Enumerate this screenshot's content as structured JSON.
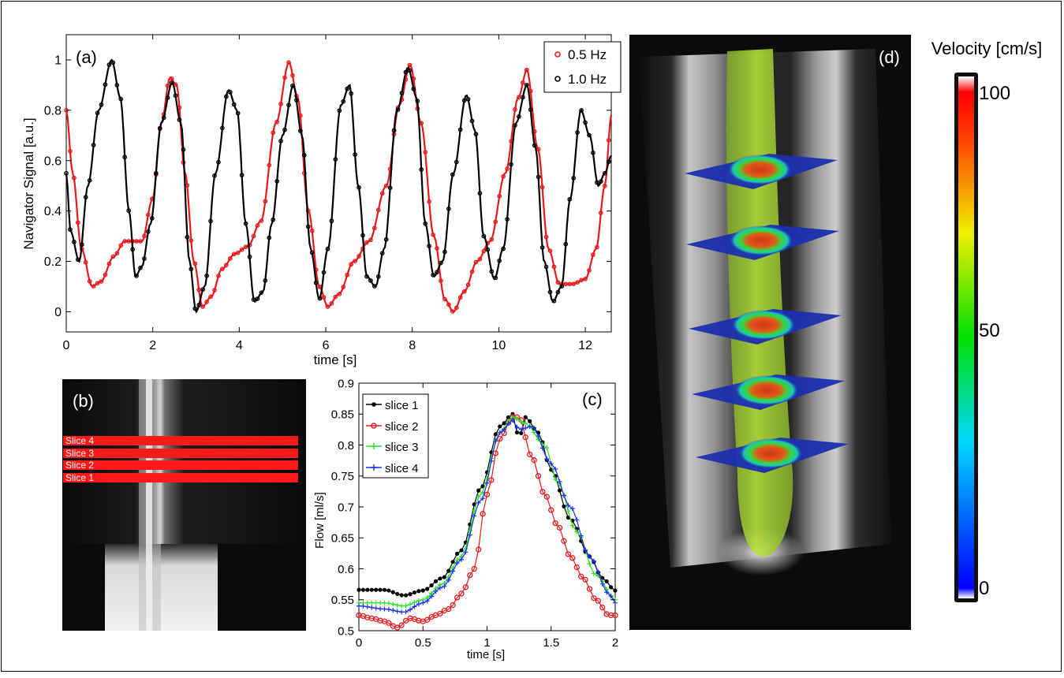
{
  "colors": {
    "red": "#e8191b",
    "black": "#000000",
    "green": "#27e627",
    "blue": "#1d2ff0",
    "slice_band": "#ff1a1a"
  },
  "chart_data": [
    {
      "id": "a",
      "type": "line",
      "panel_label": "(a)",
      "xlabel": "time [s]",
      "ylabel": "Navigator Signal [a.u.]",
      "xlim": [
        0,
        12.6
      ],
      "ylim": [
        -0.08,
        1.1
      ],
      "xticks": [
        0,
        2,
        4,
        6,
        8,
        10,
        12
      ],
      "xtick_labels": [
        "0",
        "2",
        "4",
        "6",
        "8",
        "10",
        "12"
      ],
      "yticks": [
        0,
        0.2,
        0.4,
        0.6,
        0.8,
        1
      ],
      "ytick_labels": [
        "0",
        "0.2",
        "0.4",
        "0.6",
        "0.8",
        "1"
      ],
      "legend": {
        "position": "top-right",
        "entries": [
          "0.5 Hz",
          "1.0 Hz"
        ]
      },
      "series": [
        {
          "name": "0.5 Hz",
          "color": "#e8191b",
          "points": [
            [
              0,
              0.8
            ],
            [
              0.15,
              0.55
            ],
            [
              0.35,
              0.25
            ],
            [
              0.6,
              0.1
            ],
            [
              0.8,
              0.12
            ],
            [
              1.1,
              0.22
            ],
            [
              1.35,
              0.28
            ],
            [
              1.75,
              0.28
            ],
            [
              2.0,
              0.45
            ],
            [
              2.2,
              0.75
            ],
            [
              2.4,
              0.93
            ],
            [
              2.55,
              0.9
            ],
            [
              2.75,
              0.55
            ],
            [
              2.95,
              0.2
            ],
            [
              3.15,
              0.02
            ],
            [
              3.35,
              0.06
            ],
            [
              3.6,
              0.17
            ],
            [
              3.9,
              0.23
            ],
            [
              4.2,
              0.26
            ],
            [
              4.5,
              0.36
            ],
            [
              4.85,
              0.75
            ],
            [
              5.15,
              0.99
            ],
            [
              5.35,
              0.85
            ],
            [
              5.6,
              0.4
            ],
            [
              5.85,
              0.1
            ],
            [
              6.05,
              0.02
            ],
            [
              6.3,
              0.07
            ],
            [
              6.65,
              0.2
            ],
            [
              7.0,
              0.28
            ],
            [
              7.4,
              0.5
            ],
            [
              7.7,
              0.82
            ],
            [
              7.95,
              0.98
            ],
            [
              8.2,
              0.75
            ],
            [
              8.5,
              0.3
            ],
            [
              8.75,
              0.05
            ],
            [
              8.95,
              0.0
            ],
            [
              9.2,
              0.08
            ],
            [
              9.5,
              0.2
            ],
            [
              9.8,
              0.28
            ],
            [
              10.15,
              0.55
            ],
            [
              10.45,
              0.85
            ],
            [
              10.65,
              0.96
            ],
            [
              10.9,
              0.65
            ],
            [
              11.15,
              0.25
            ],
            [
              11.4,
              0.11
            ],
            [
              11.7,
              0.11
            ],
            [
              12.0,
              0.13
            ],
            [
              12.25,
              0.25
            ],
            [
              12.45,
              0.5
            ],
            [
              12.6,
              0.78
            ]
          ]
        },
        {
          "name": "1.0 Hz",
          "color": "#000000",
          "points": [
            [
              0,
              0.55
            ],
            [
              0.1,
              0.32
            ],
            [
              0.3,
              0.2
            ],
            [
              0.5,
              0.5
            ],
            [
              0.75,
              0.8
            ],
            [
              1.05,
              1.0
            ],
            [
              1.25,
              0.85
            ],
            [
              1.45,
              0.4
            ],
            [
              1.6,
              0.14
            ],
            [
              1.75,
              0.18
            ],
            [
              1.95,
              0.35
            ],
            [
              2.2,
              0.75
            ],
            [
              2.45,
              0.91
            ],
            [
              2.65,
              0.75
            ],
            [
              2.85,
              0.2
            ],
            [
              3.0,
              0.0
            ],
            [
              3.2,
              0.1
            ],
            [
              3.45,
              0.55
            ],
            [
              3.75,
              0.88
            ],
            [
              3.95,
              0.8
            ],
            [
              4.15,
              0.35
            ],
            [
              4.35,
              0.04
            ],
            [
              4.55,
              0.08
            ],
            [
              4.75,
              0.35
            ],
            [
              5.0,
              0.7
            ],
            [
              5.25,
              0.9
            ],
            [
              5.45,
              0.7
            ],
            [
              5.65,
              0.25
            ],
            [
              5.85,
              0.05
            ],
            [
              6.05,
              0.25
            ],
            [
              6.35,
              0.82
            ],
            [
              6.55,
              0.9
            ],
            [
              6.75,
              0.5
            ],
            [
              6.95,
              0.14
            ],
            [
              7.15,
              0.1
            ],
            [
              7.35,
              0.25
            ],
            [
              7.65,
              0.8
            ],
            [
              7.9,
              0.97
            ],
            [
              8.1,
              0.85
            ],
            [
              8.3,
              0.35
            ],
            [
              8.5,
              0.14
            ],
            [
              8.7,
              0.2
            ],
            [
              8.95,
              0.55
            ],
            [
              9.25,
              0.86
            ],
            [
              9.45,
              0.72
            ],
            [
              9.65,
              0.3
            ],
            [
              9.9,
              0.13
            ],
            [
              10.1,
              0.25
            ],
            [
              10.4,
              0.75
            ],
            [
              10.65,
              0.9
            ],
            [
              10.85,
              0.65
            ],
            [
              11.05,
              0.2
            ],
            [
              11.25,
              0.04
            ],
            [
              11.45,
              0.1
            ],
            [
              11.65,
              0.45
            ],
            [
              11.9,
              0.8
            ],
            [
              12.1,
              0.7
            ],
            [
              12.3,
              0.5
            ],
            [
              12.45,
              0.55
            ],
            [
              12.6,
              0.62
            ]
          ]
        }
      ]
    },
    {
      "id": "c",
      "type": "line",
      "panel_label": "(c)",
      "xlabel": "time [s]",
      "ylabel": "Flow [ml/s]",
      "xlim": [
        0,
        2
      ],
      "ylim": [
        0.5,
        0.9
      ],
      "xticks": [
        0,
        0.5,
        1,
        1.5,
        2
      ],
      "xtick_labels": [
        "0",
        "0.5",
        "1",
        "1.5",
        "2"
      ],
      "yticks": [
        0.5,
        0.55,
        0.6,
        0.65,
        0.7,
        0.75,
        0.8,
        0.85,
        0.9
      ],
      "ytick_labels": [
        "0.5",
        "0.55",
        "0.6",
        "0.65",
        "0.7",
        "0.75",
        "0.8",
        "0.85",
        "0.9"
      ],
      "legend": {
        "position": "top-left",
        "entries": [
          "slice 1",
          "slice 2",
          "slice 3",
          "slice 4"
        ]
      },
      "series": [
        {
          "name": "slice 1",
          "color": "#000000",
          "marker": "dot",
          "points": [
            [
              0,
              0.566
            ],
            [
              0.2,
              0.566
            ],
            [
              0.35,
              0.557
            ],
            [
              0.5,
              0.565
            ],
            [
              0.65,
              0.585
            ],
            [
              0.8,
              0.63
            ],
            [
              0.95,
              0.73
            ],
            [
              1.1,
              0.83
            ],
            [
              1.2,
              0.85
            ],
            [
              1.25,
              0.81
            ],
            [
              1.3,
              0.845
            ],
            [
              1.4,
              0.82
            ],
            [
              1.5,
              0.76
            ],
            [
              1.65,
              0.68
            ],
            [
              1.8,
              0.62
            ],
            [
              1.9,
              0.585
            ],
            [
              2.0,
              0.565
            ]
          ]
        },
        {
          "name": "slice 2",
          "color": "#e8191b",
          "marker": "circle",
          "points": [
            [
              0,
              0.525
            ],
            [
              0.1,
              0.52
            ],
            [
              0.2,
              0.515
            ],
            [
              0.3,
              0.505
            ],
            [
              0.4,
              0.52
            ],
            [
              0.5,
              0.515
            ],
            [
              0.6,
              0.525
            ],
            [
              0.7,
              0.535
            ],
            [
              0.8,
              0.56
            ],
            [
              0.9,
              0.6
            ],
            [
              1.0,
              0.72
            ],
            [
              1.1,
              0.81
            ],
            [
              1.2,
              0.845
            ],
            [
              1.25,
              0.845
            ],
            [
              1.35,
              0.78
            ],
            [
              1.45,
              0.72
            ],
            [
              1.55,
              0.67
            ],
            [
              1.65,
              0.62
            ],
            [
              1.75,
              0.585
            ],
            [
              1.85,
              0.55
            ],
            [
              1.95,
              0.525
            ],
            [
              2.0,
              0.525
            ]
          ]
        },
        {
          "name": "slice 3",
          "color": "#27e627",
          "marker": "plus",
          "points": [
            [
              0,
              0.545
            ],
            [
              0.2,
              0.545
            ],
            [
              0.35,
              0.54
            ],
            [
              0.5,
              0.55
            ],
            [
              0.65,
              0.575
            ],
            [
              0.8,
              0.62
            ],
            [
              0.95,
              0.72
            ],
            [
              1.1,
              0.82
            ],
            [
              1.2,
              0.845
            ],
            [
              1.3,
              0.835
            ],
            [
              1.45,
              0.8
            ],
            [
              1.55,
              0.74
            ],
            [
              1.7,
              0.66
            ],
            [
              1.85,
              0.59
            ],
            [
              2.0,
              0.55
            ]
          ]
        },
        {
          "name": "slice 4",
          "color": "#1d2ff0",
          "marker": "plus",
          "points": [
            [
              0,
              0.54
            ],
            [
              0.2,
              0.535
            ],
            [
              0.35,
              0.53
            ],
            [
              0.5,
              0.545
            ],
            [
              0.65,
              0.57
            ],
            [
              0.8,
              0.615
            ],
            [
              0.95,
              0.71
            ],
            [
              1.1,
              0.82
            ],
            [
              1.2,
              0.84
            ],
            [
              1.25,
              0.825
            ],
            [
              1.35,
              0.83
            ],
            [
              1.5,
              0.77
            ],
            [
              1.65,
              0.7
            ],
            [
              1.8,
              0.62
            ],
            [
              1.95,
              0.56
            ],
            [
              2.0,
              0.545
            ]
          ]
        }
      ]
    }
  ],
  "panel_b": {
    "label": "(b)",
    "slices": [
      "Slice 4",
      "Slice 3",
      "Slice 2",
      "Slice 1"
    ]
  },
  "panel_d": {
    "label": "(d)",
    "colorbar_title": "Velocity [cm/s]",
    "colorbar_ticks": [
      "100",
      "50",
      "0"
    ],
    "planes": 5
  }
}
